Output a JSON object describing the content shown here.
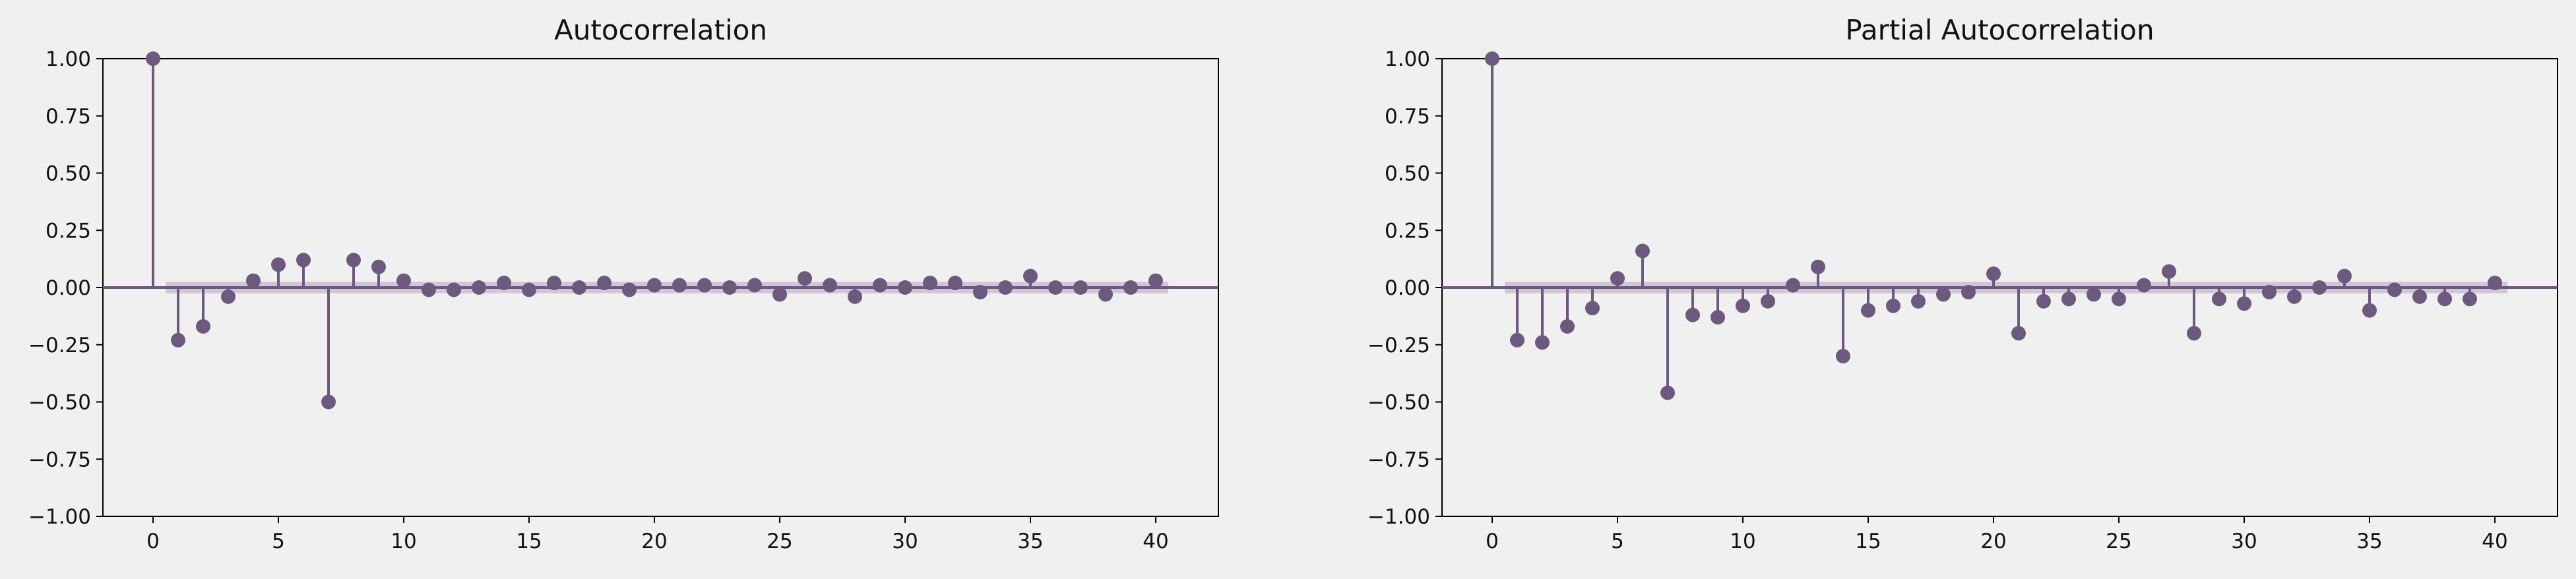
{
  "colors": {
    "stem": "#6b5a7e",
    "marker": "#6b5a7e",
    "band": "#c9bfd4",
    "axis": "#000000",
    "background": "#f0f0f0"
  },
  "chart_data": [
    {
      "type": "scatter",
      "title": "Autocorrelation",
      "xlim": [
        -2,
        42.5
      ],
      "ylim": [
        -1.0,
        1.0
      ],
      "xticks": [
        0,
        5,
        10,
        15,
        20,
        25,
        30,
        35,
        40
      ],
      "yticks": [
        1.0,
        0.75,
        0.5,
        0.25,
        0.0,
        -0.25,
        -0.5,
        -0.75,
        -1.0
      ],
      "xtick_labels": [
        "0",
        "5",
        "10",
        "15",
        "20",
        "25",
        "30",
        "35",
        "40"
      ],
      "ytick_labels": [
        "1.00",
        "0.75",
        "0.50",
        "0.25",
        "0.00",
        "−0.25",
        "−0.50",
        "−0.75",
        "−1.00"
      ],
      "confint": 0.025,
      "lags": [
        0,
        1,
        2,
        3,
        4,
        5,
        6,
        7,
        8,
        9,
        10,
        11,
        12,
        13,
        14,
        15,
        16,
        17,
        18,
        19,
        20,
        21,
        22,
        23,
        24,
        25,
        26,
        27,
        28,
        29,
        30,
        31,
        32,
        33,
        34,
        35,
        36,
        37,
        38,
        39,
        40
      ],
      "values": [
        1.0,
        -0.23,
        -0.17,
        -0.04,
        0.03,
        0.1,
        0.12,
        -0.5,
        0.12,
        0.09,
        0.03,
        -0.01,
        -0.01,
        0.0,
        0.02,
        -0.01,
        0.02,
        0.0,
        0.02,
        -0.01,
        0.01,
        0.01,
        0.01,
        0.0,
        0.01,
        -0.03,
        0.04,
        0.01,
        -0.04,
        0.01,
        0.0,
        0.02,
        0.02,
        -0.02,
        0.0,
        0.05,
        0.0,
        0.0,
        -0.03,
        0.0,
        0.03
      ]
    },
    {
      "type": "scatter",
      "title": "Partial Autocorrelation",
      "xlim": [
        -2,
        42.5
      ],
      "ylim": [
        -1.0,
        1.0
      ],
      "xticks": [
        0,
        5,
        10,
        15,
        20,
        25,
        30,
        35,
        40
      ],
      "yticks": [
        1.0,
        0.75,
        0.5,
        0.25,
        0.0,
        -0.25,
        -0.5,
        -0.75,
        -1.0
      ],
      "xtick_labels": [
        "0",
        "5",
        "10",
        "15",
        "20",
        "25",
        "30",
        "35",
        "40"
      ],
      "ytick_labels": [
        "1.00",
        "0.75",
        "0.50",
        "0.25",
        "0.00",
        "−0.25",
        "−0.50",
        "−0.75",
        "−1.00"
      ],
      "confint": 0.025,
      "lags": [
        0,
        1,
        2,
        3,
        4,
        5,
        6,
        7,
        8,
        9,
        10,
        11,
        12,
        13,
        14,
        15,
        16,
        17,
        18,
        19,
        20,
        21,
        22,
        23,
        24,
        25,
        26,
        27,
        28,
        29,
        30,
        31,
        32,
        33,
        34,
        35,
        36,
        37,
        38,
        39,
        40
      ],
      "values": [
        1.0,
        -0.23,
        -0.24,
        -0.17,
        -0.09,
        0.04,
        0.16,
        -0.46,
        -0.12,
        -0.13,
        -0.08,
        -0.06,
        0.01,
        0.09,
        -0.3,
        -0.1,
        -0.08,
        -0.06,
        -0.03,
        -0.02,
        0.06,
        -0.2,
        -0.06,
        -0.05,
        -0.03,
        -0.05,
        0.01,
        0.07,
        -0.2,
        -0.05,
        -0.07,
        -0.02,
        -0.04,
        0.0,
        0.05,
        -0.1,
        -0.01,
        -0.04,
        -0.05,
        -0.05,
        0.02
      ]
    }
  ]
}
